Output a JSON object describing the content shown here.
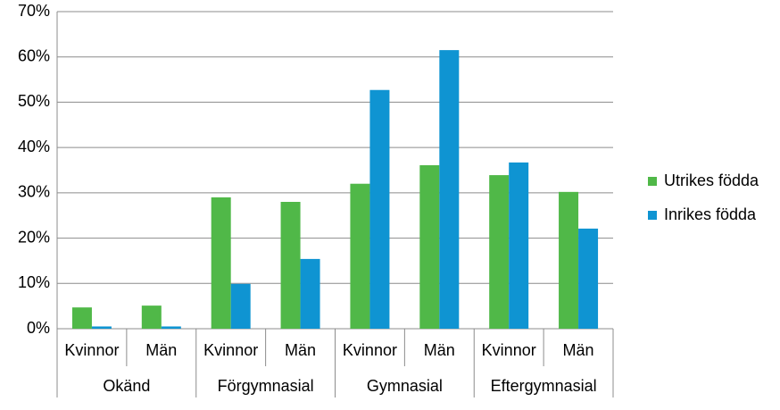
{
  "chart_data": {
    "type": "bar",
    "categories": [
      "Kvinnor",
      "Män",
      "Kvinnor",
      "Män",
      "Kvinnor",
      "Män",
      "Kvinnor",
      "Män"
    ],
    "group_labels": [
      "Okänd",
      "Förgymnasial",
      "Gymnasial",
      "Eftergymnasial"
    ],
    "series": [
      {
        "name": "Utrikes födda",
        "color": "#50b848",
        "values": [
          4.7,
          5.1,
          29.0,
          28.0,
          32.0,
          36.1,
          33.9,
          30.2
        ]
      },
      {
        "name": "Inrikes födda",
        "color": "#0f94d2",
        "values": [
          0.5,
          0.5,
          9.9,
          15.4,
          52.7,
          61.5,
          36.7,
          22.1
        ]
      }
    ],
    "ylim": [
      0,
      70
    ],
    "yticks": [
      {
        "value": 0,
        "label": "0%"
      },
      {
        "value": 10,
        "label": "10%"
      },
      {
        "value": 20,
        "label": "20%"
      },
      {
        "value": 30,
        "label": "30%"
      },
      {
        "value": 40,
        "label": "40%"
      },
      {
        "value": 50,
        "label": "50%"
      },
      {
        "value": 60,
        "label": "60%"
      },
      {
        "value": 70,
        "label": "70%"
      }
    ],
    "grid": true,
    "legend": "right"
  }
}
